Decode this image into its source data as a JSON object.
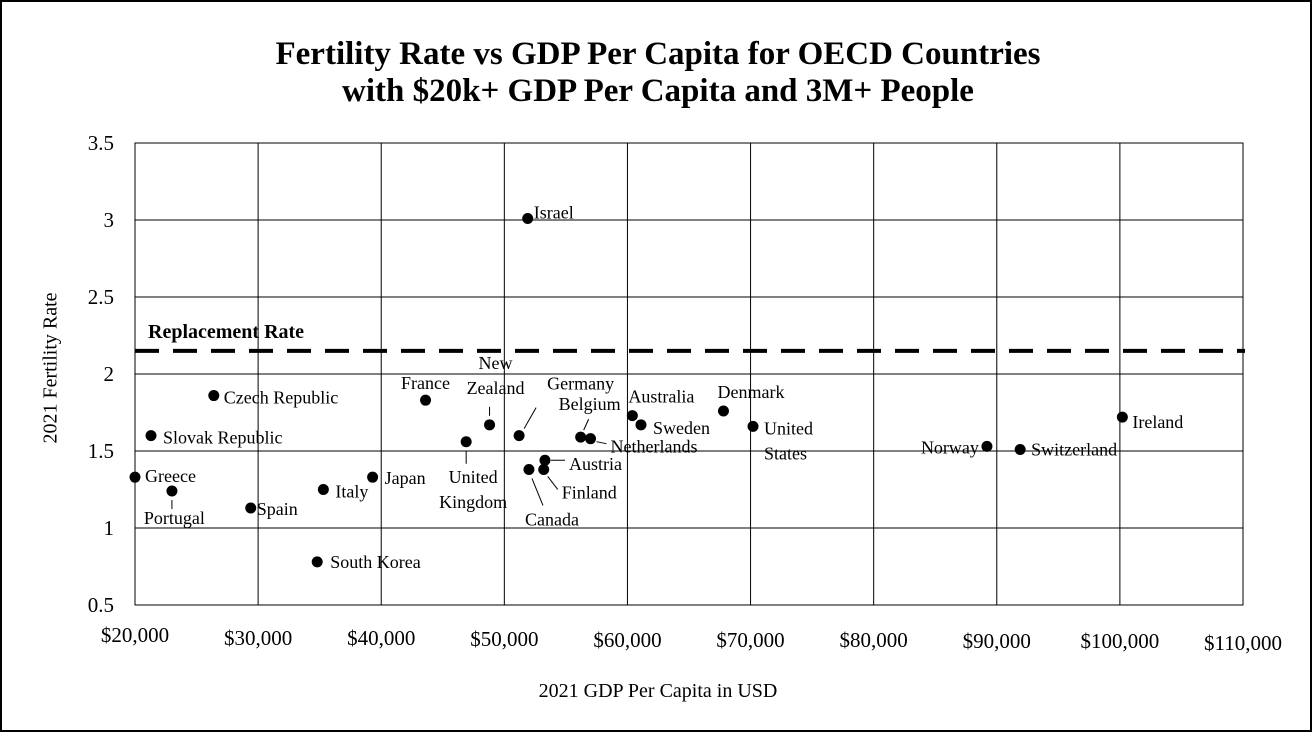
{
  "chart_data": {
    "type": "scatter",
    "title": [
      "Fertility Rate vs GDP Per Capita for OECD Countries",
      "with $20k+ GDP Per Capita and 3M+ People"
    ],
    "xlabel": "2021 GDP Per Capita in USD",
    "ylabel": "2021 Fertility Rate",
    "xlim": [
      20000,
      110000
    ],
    "ylim": [
      0.5,
      3.5
    ],
    "x_ticks": [
      20000,
      30000,
      40000,
      50000,
      60000,
      70000,
      80000,
      90000,
      100000,
      110000
    ],
    "x_tick_labels": [
      "$20,000",
      "$30,000",
      "$40,000",
      "$50,000",
      "$60,000",
      "$70,000",
      "$80,000",
      "$90,000",
      "$100,000",
      "$110,000"
    ],
    "y_ticks": [
      0.5,
      1,
      1.5,
      2,
      2.5,
      3,
      3.5
    ],
    "y_tick_labels": [
      "0.5",
      "1",
      "1.5",
      "2",
      "2.5",
      "3",
      "3.5"
    ],
    "grid": true,
    "reference_line": {
      "label": "Replacement Rate",
      "y": 2.15,
      "style": "dashed"
    },
    "points": [
      {
        "label": "Israel",
        "x": 51900,
        "y": 3.01
      },
      {
        "label": "Czech Republic",
        "x": 26400,
        "y": 1.86
      },
      {
        "label": "Slovak Republic",
        "x": 21300,
        "y": 1.6
      },
      {
        "label": "Greece",
        "x": 20000,
        "y": 1.33
      },
      {
        "label": "Portugal",
        "x": 23000,
        "y": 1.24
      },
      {
        "label": "Spain",
        "x": 29400,
        "y": 1.13
      },
      {
        "label": "Italy",
        "x": 35300,
        "y": 1.25
      },
      {
        "label": "Japan",
        "x": 39300,
        "y": 1.33
      },
      {
        "label": "South Korea",
        "x": 34800,
        "y": 0.78
      },
      {
        "label": "France",
        "x": 43600,
        "y": 1.83
      },
      {
        "label": "United Kingdom",
        "x": 46900,
        "y": 1.56
      },
      {
        "label": "New Zealand",
        "x": 48800,
        "y": 1.67
      },
      {
        "label": "Germany",
        "x": 51200,
        "y": 1.6
      },
      {
        "label": "Canada",
        "x": 52000,
        "y": 1.38
      },
      {
        "label": "Austria",
        "x": 53300,
        "y": 1.44
      },
      {
        "label": "Finland",
        "x": 53200,
        "y": 1.38
      },
      {
        "label": "Belgium",
        "x": 56200,
        "y": 1.59
      },
      {
        "label": "Netherlands",
        "x": 57000,
        "y": 1.58
      },
      {
        "label": "Australia",
        "x": 60400,
        "y": 1.73
      },
      {
        "label": "Sweden",
        "x": 61100,
        "y": 1.67
      },
      {
        "label": "Denmark",
        "x": 67800,
        "y": 1.76
      },
      {
        "label": "United States",
        "x": 70200,
        "y": 1.66
      },
      {
        "label": "Norway",
        "x": 89200,
        "y": 1.53
      },
      {
        "label": "Switzerland",
        "x": 91900,
        "y": 1.51
      },
      {
        "label": "Ireland",
        "x": 100200,
        "y": 1.72
      }
    ]
  }
}
